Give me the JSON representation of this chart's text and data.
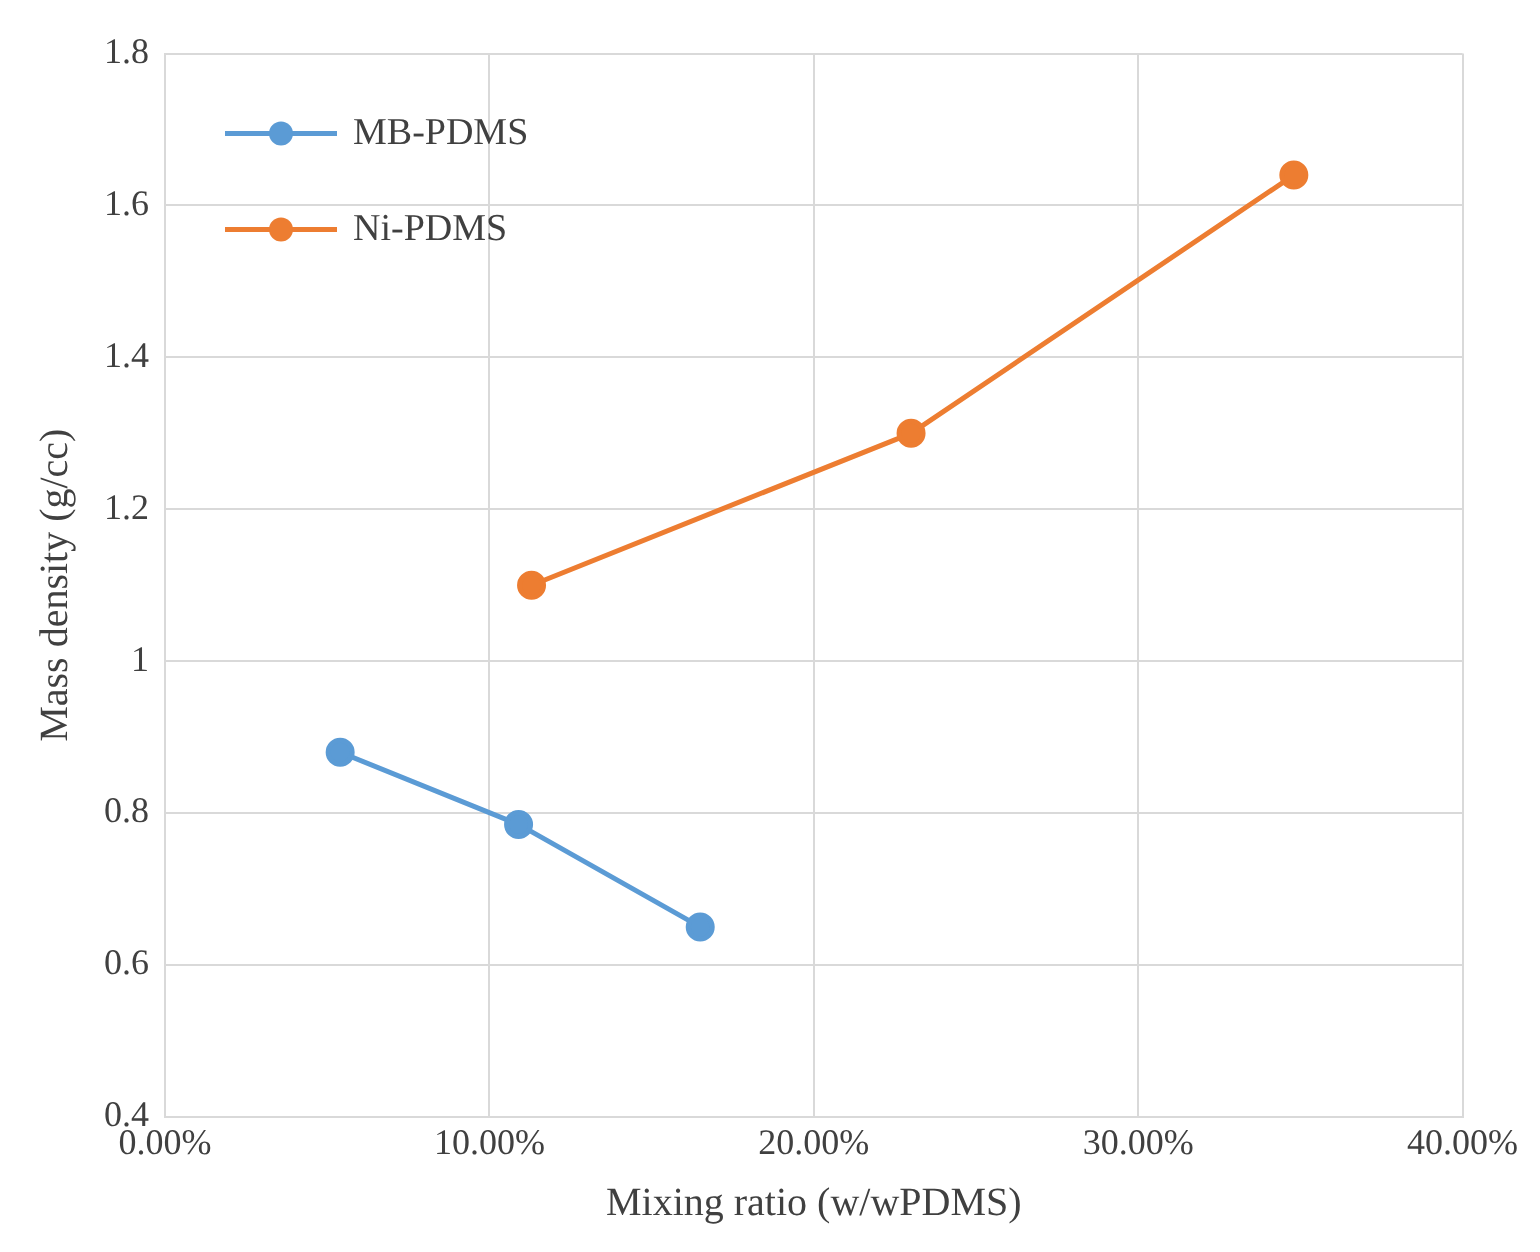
{
  "chart_data": {
    "type": "line",
    "xlabel": "Mixing ratio (w/wPDMS)",
    "ylabel": "Mass density (g/cc)",
    "xlim": [
      0,
      0.4
    ],
    "xticks": [
      {
        "value": 0,
        "label": "0.00%"
      },
      {
        "value": 0.1,
        "label": "10.00%"
      },
      {
        "value": 0.2,
        "label": "20.00%"
      },
      {
        "value": 0.3,
        "label": "30.00%"
      },
      {
        "value": 0.4,
        "label": "40.00%"
      }
    ],
    "ylim": [
      0.4,
      1.8
    ],
    "yticks": [
      0.4,
      0.6,
      0.8,
      1,
      1.2,
      1.4,
      1.6,
      1.8
    ],
    "grid": true,
    "legend": "top left",
    "marker": "circle",
    "line_style": "solid",
    "series": [
      {
        "name": "MB-PDMS",
        "color": "#5b9bd5",
        "x": [
          0.054,
          0.109,
          0.165
        ],
        "values": [
          0.88,
          0.785,
          0.65
        ]
      },
      {
        "name": "Ni-PDMS",
        "color": "#ed7d31",
        "x": [
          0.113,
          0.23,
          0.348
        ],
        "values": [
          1.1,
          1.3,
          1.64
        ]
      }
    ]
  }
}
